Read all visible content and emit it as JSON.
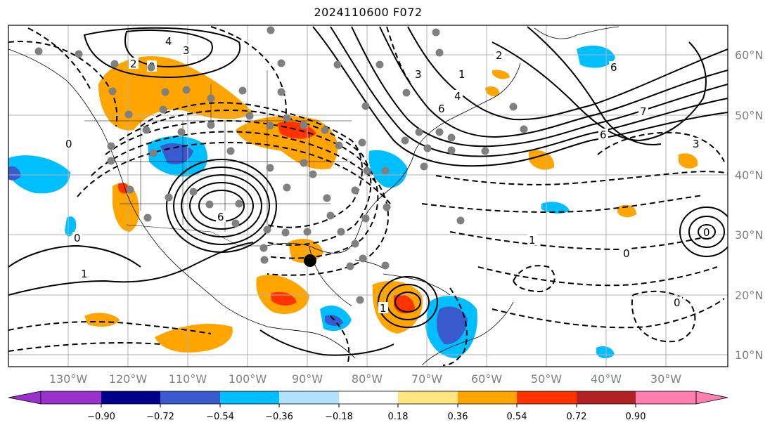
{
  "title": "2024110600 F072",
  "map": {
    "projection": "cylindrical",
    "lon_range": [
      -145,
      -25
    ],
    "lat_range": [
      8,
      65
    ],
    "gridlines": true,
    "longitude_labels": [
      "130°W",
      "120°W",
      "110°W",
      "100°W",
      "90°W",
      "80°W",
      "70°W",
      "60°W",
      "50°W",
      "40°W",
      "30°W"
    ],
    "latitude_labels": [
      "60°N",
      "50°N",
      "40°N",
      "30°N",
      "20°N",
      "10°N"
    ],
    "contour_labels": [
      "4",
      "3",
      "2",
      "0",
      "6",
      "1",
      "6",
      "7",
      "6",
      "0",
      "3",
      "6",
      "0",
      "1",
      "0",
      "0",
      "0",
      "1",
      "2",
      "3",
      "4",
      "1"
    ]
  },
  "colorbar": {
    "ticks": [
      "−0.90",
      "−0.72",
      "−0.54",
      "−0.36",
      "−0.18",
      "0.18",
      "0.36",
      "0.54",
      "0.72",
      "0.90"
    ],
    "colors": [
      "#9932cc",
      "#00008b",
      "#3a5bd0",
      "#00bfff",
      "#b0e2ff",
      "#ffffff",
      "#ffe680",
      "#ffa500",
      "#ff3300",
      "#b22222",
      "#ff80b0"
    ],
    "extend": "both"
  },
  "colors": {
    "positive_fill": "#ffa500",
    "positive_strong": "#ff3300",
    "negative_fill": "#00bfff",
    "negative_strong": "#3a5bd0",
    "contour": "#000000",
    "station_marker": "#808080"
  }
}
